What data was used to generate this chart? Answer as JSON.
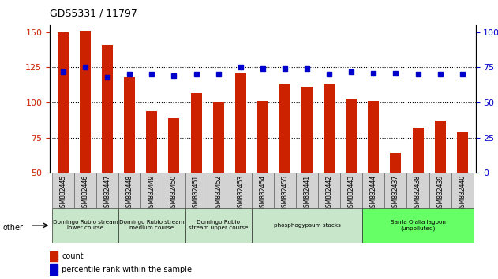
{
  "title": "GDS5331 / 11797",
  "samples": [
    "GSM832445",
    "GSM832446",
    "GSM832447",
    "GSM832448",
    "GSM832449",
    "GSM832450",
    "GSM832451",
    "GSM832452",
    "GSM832453",
    "GSM832454",
    "GSM832455",
    "GSM832441",
    "GSM832442",
    "GSM832443",
    "GSM832444",
    "GSM832437",
    "GSM832438",
    "GSM832439",
    "GSM832440"
  ],
  "counts": [
    150,
    151,
    141,
    118,
    94,
    89,
    107,
    100,
    121,
    101,
    113,
    111,
    113,
    103,
    101,
    64,
    82,
    87,
    79
  ],
  "percentiles": [
    72,
    75,
    68,
    70,
    70,
    69,
    70,
    70,
    75,
    74,
    74,
    74,
    70,
    72,
    71,
    71,
    70,
    70,
    70
  ],
  "group_colors": [
    "#c8e6c9",
    "#c8e6c9",
    "#c8e6c9",
    "#c8e6c9",
    "#66ff66"
  ],
  "group_labels": [
    "Domingo Rubio stream\nlower course",
    "Domingo Rubio stream\nmedium course",
    "Domingo Rubio\nstream upper course",
    "phosphogypsum stacks",
    "Santa Olalla lagoon\n(unpolluted)"
  ],
  "group_starts": [
    0,
    3,
    6,
    9,
    14
  ],
  "group_ends": [
    3,
    6,
    9,
    14,
    19
  ],
  "bar_color": "#cc2200",
  "dot_color": "#0000cc",
  "ylim_left": [
    50,
    155
  ],
  "ylim_right": [
    0,
    105
  ],
  "yticks_left": [
    50,
    75,
    100,
    125,
    150
  ],
  "yticks_right": [
    0,
    25,
    50,
    75,
    100
  ],
  "grid_yticks": [
    75,
    100,
    125
  ]
}
